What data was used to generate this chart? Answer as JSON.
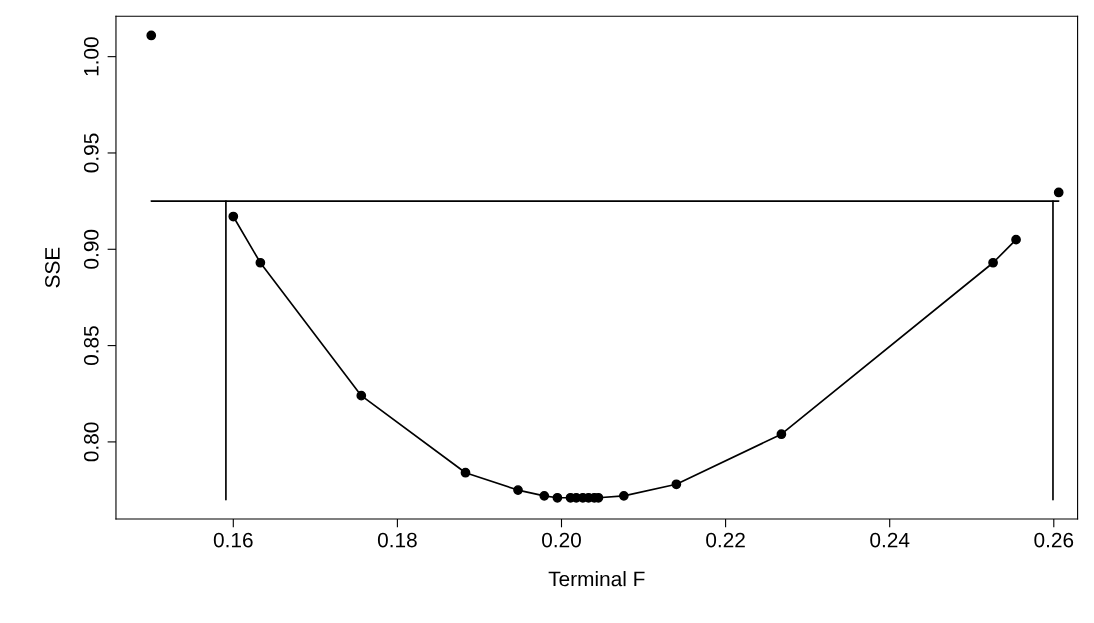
{
  "chart_data": {
    "type": "line",
    "xlabel": "Terminal F",
    "ylabel": "SSE",
    "xlim": [
      0.1457,
      0.2629
    ],
    "ylim": [
      0.76,
      1.021
    ],
    "xticks": [
      0.16,
      0.18,
      {
        "value": 0.2,
        "label": "0.20"
      },
      0.22,
      0.24,
      0.26
    ],
    "yticks": [
      {
        "value": 0.8,
        "label": "0.80"
      },
      0.85,
      {
        "value": 0.9,
        "label": "0.90"
      },
      0.95,
      {
        "value": 1.0,
        "label": "1.00"
      }
    ],
    "grid": false,
    "legend": false,
    "series": [
      {
        "marker": "circle",
        "color": "#000000",
        "x": [
          0.16,
          0.1633,
          0.1756,
          0.1883,
          0.1947,
          0.1979,
          0.1995,
          0.2011,
          0.2018,
          0.2026,
          0.2033,
          0.204,
          0.2045,
          0.2076,
          0.214,
          0.2268,
          0.2526,
          0.2554
        ],
        "values": [
          0.917,
          0.893,
          0.824,
          0.784,
          0.775,
          0.772,
          0.771,
          0.771,
          0.771,
          0.771,
          0.771,
          0.771,
          0.771,
          0.772,
          0.778,
          0.804,
          0.893,
          0.905
        ]
      },
      {
        "type": "scatter",
        "marker": "circle",
        "color": "#000000",
        "x": [
          0.15,
          0.2606
        ],
        "values": [
          1.011,
          0.9295
        ]
      },
      {
        "type": "line",
        "marker": "none",
        "color": "#000000",
        "x": [
          0.15,
          0.2606
        ],
        "values": [
          0.925,
          0.925
        ]
      },
      {
        "type": "line",
        "marker": "none",
        "color": "#000000",
        "x": [
          0.1591,
          0.1591
        ],
        "values": [
          0.77,
          0.925
        ]
      },
      {
        "type": "line",
        "marker": "none",
        "color": "#000000",
        "x": [
          0.2599,
          0.2599
        ],
        "values": [
          0.77,
          0.925
        ]
      }
    ]
  }
}
